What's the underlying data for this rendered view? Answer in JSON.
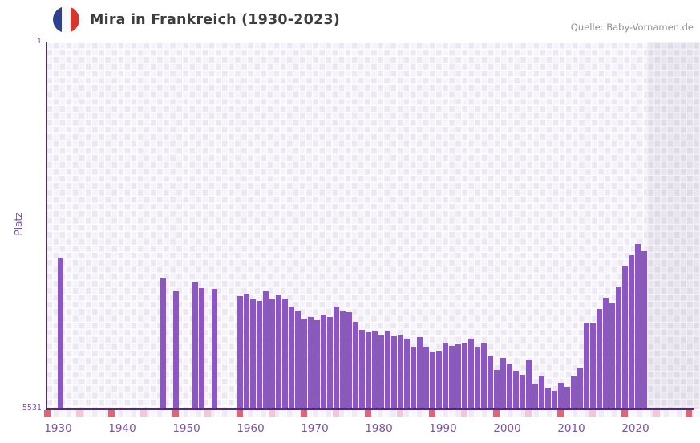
{
  "header": {
    "title": "Mira in Frankreich (1930-2023)",
    "source": "Quelle: Baby-Vornamen.de",
    "flag_icon": "france-flag-icon"
  },
  "axis": {
    "ylabel": "Platz",
    "y_top": "1",
    "y_bottom": "5531",
    "x_ticks": [
      "1930",
      "1940",
      "1950",
      "1960",
      "1970",
      "1980",
      "1990",
      "2000",
      "2010",
      "2020"
    ]
  },
  "colors": {
    "bar": "#8c57c3",
    "axis_line": "#4e2c86",
    "tick_text": "#7c50ae",
    "title_text": "#3d3d3d",
    "source_text": "#8f8f8f",
    "grid_cell_dark": "#ece7f3",
    "grid_cell_light": "#f6f3fa",
    "nodata_cell_dark": "#dfdbe7",
    "nodata_cell_light": "#e8e5ee",
    "marker_red": "#e16570",
    "marker_pink": "#f3c8d0"
  },
  "chart_data": {
    "type": "bar",
    "title": "Mira in Frankreich (1930-2023)",
    "ylabel": "Platz",
    "y_axis": {
      "top_value": 1,
      "bottom_value": 5531,
      "inverted": true,
      "note": "rank 1 is best; taller bar = better rank"
    },
    "x_axis": {
      "first_year": 1930,
      "last_year": 2023,
      "tick_step": 10
    },
    "no_data_shaded_from_year": 2022,
    "years": [
      1930,
      1931,
      1932,
      1933,
      1934,
      1935,
      1936,
      1937,
      1938,
      1939,
      1940,
      1941,
      1942,
      1943,
      1944,
      1945,
      1946,
      1947,
      1948,
      1949,
      1950,
      1951,
      1952,
      1953,
      1954,
      1955,
      1956,
      1957,
      1958,
      1959,
      1960,
      1961,
      1962,
      1963,
      1964,
      1965,
      1966,
      1967,
      1968,
      1969,
      1970,
      1971,
      1972,
      1973,
      1974,
      1975,
      1976,
      1977,
      1978,
      1979,
      1980,
      1981,
      1982,
      1983,
      1984,
      1985,
      1986,
      1987,
      1988,
      1989,
      1990,
      1991,
      1992,
      1993,
      1994,
      1995,
      1996,
      1997,
      1998,
      1999,
      2000,
      2001,
      2002,
      2003,
      2004,
      2005,
      2006,
      2007,
      2008,
      2009,
      2010,
      2011,
      2012,
      2013,
      2014,
      2015,
      2016,
      2017,
      2018,
      2019,
      2020,
      2021
    ],
    "ranks": [
      3245,
      null,
      null,
      null,
      null,
      null,
      null,
      null,
      null,
      null,
      null,
      null,
      null,
      null,
      null,
      null,
      3563,
      null,
      3760,
      null,
      null,
      3627,
      3704,
      null,
      3716,
      null,
      null,
      null,
      3832,
      3792,
      3880,
      3897,
      3760,
      3880,
      3820,
      3861,
      3982,
      4050,
      4163,
      4142,
      4194,
      4102,
      4142,
      3982,
      4054,
      4070,
      4215,
      4336,
      4372,
      4364,
      4424,
      4344,
      4436,
      4424,
      4465,
      4605,
      4444,
      4586,
      4658,
      4650,
      4545,
      4574,
      4553,
      4538,
      4472,
      4605,
      4545,
      4726,
      4943,
      4755,
      4847,
      4948,
      5008,
      4786,
      5148,
      5040,
      5209,
      5250,
      5129,
      5189,
      5040,
      4907,
      4226,
      4240,
      4025,
      3852,
      3933,
      3679,
      3377,
      3209,
      3047,
      3148
    ],
    "bottom_strip_markers": {
      "red_years": [
        1928,
        1938,
        1948,
        1958,
        1968,
        1978,
        1988,
        1998,
        2008,
        2018,
        2028
      ],
      "pink_years": [
        1933,
        1943,
        1953,
        1963,
        1973,
        1983,
        1993,
        2003,
        2013,
        2023
      ]
    }
  }
}
